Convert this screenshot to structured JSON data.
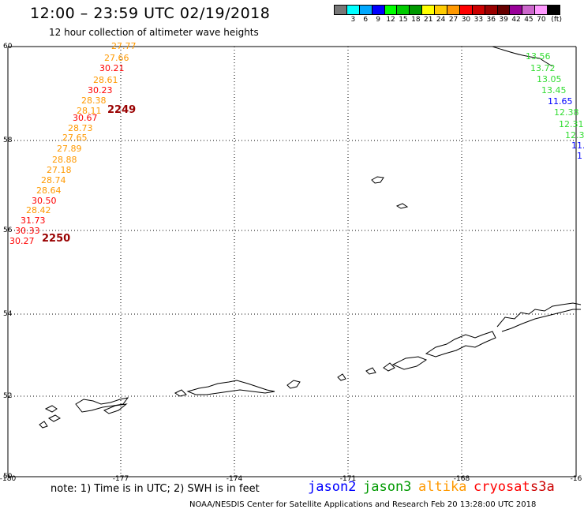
{
  "header": {
    "title": "12:00 – 23:59 UTC 02/19/2018",
    "subtitle": "12 hour collection of altimeter wave heights"
  },
  "legend": {
    "unit": "(ft)",
    "swatches": [
      {
        "color": "#777777",
        "label": ""
      },
      {
        "color": "#00ffff",
        "label": "3"
      },
      {
        "color": "#00a8ff",
        "label": "6"
      },
      {
        "color": "#0000ff",
        "label": "9"
      },
      {
        "color": "#00ff00",
        "label": "12"
      },
      {
        "color": "#00cc00",
        "label": "15"
      },
      {
        "color": "#009900",
        "label": "18"
      },
      {
        "color": "#ffff00",
        "label": "21"
      },
      {
        "color": "#ffcc00",
        "label": "24"
      },
      {
        "color": "#ff9900",
        "label": "27"
      },
      {
        "color": "#ff0000",
        "label": "30"
      },
      {
        "color": "#cc0000",
        "label": "33"
      },
      {
        "color": "#990000",
        "label": "36"
      },
      {
        "color": "#660000",
        "label": "39"
      },
      {
        "color": "#990099",
        "label": "42"
      },
      {
        "color": "#cc66cc",
        "label": "45"
      },
      {
        "color": "#ff99ff",
        "label": "70"
      },
      {
        "color": "#000000",
        "label": ""
      }
    ]
  },
  "axes": {
    "lat_labels": [
      "60",
      "58",
      "56",
      "54",
      "52",
      "50"
    ],
    "lon_labels": [
      "-180",
      "-177",
      "-174",
      "-171",
      "-168",
      "-16"
    ]
  },
  "tracks": {
    "west": [
      {
        "v": "27.77",
        "c": "#ff9900"
      },
      {
        "v": "27.66",
        "c": "#ff9900"
      },
      {
        "v": "30.21",
        "c": "#ff0000"
      },
      {
        "v": "28.61",
        "c": "#ff9900"
      },
      {
        "v": "30.23",
        "c": "#ff0000"
      },
      {
        "v": "28.38",
        "c": "#ff9900"
      },
      {
        "v": "28.11",
        "c": "#ff9900"
      },
      {
        "v": "30.67",
        "c": "#ff0000"
      },
      {
        "v": "28.73",
        "c": "#ff9900"
      },
      {
        "v": "27.65",
        "c": "#ff9900"
      },
      {
        "v": "27.89",
        "c": "#ff9900"
      },
      {
        "v": "28.88",
        "c": "#ff9900"
      },
      {
        "v": "27.18",
        "c": "#ff9900"
      },
      {
        "v": "28.74",
        "c": "#ff9900"
      },
      {
        "v": "28.64",
        "c": "#ff9900"
      },
      {
        "v": "30.50",
        "c": "#ff0000"
      },
      {
        "v": "28.42",
        "c": "#ff9900"
      },
      {
        "v": "31.73",
        "c": "#ff0000"
      },
      {
        "v": "30.33",
        "c": "#ff0000"
      },
      {
        "v": "30.27",
        "c": "#ff0000"
      }
    ],
    "east": [
      {
        "v": "13.56",
        "c": "#33dd33"
      },
      {
        "v": "13.72",
        "c": "#33dd33"
      },
      {
        "v": "13.05",
        "c": "#33dd33"
      },
      {
        "v": "13.45",
        "c": "#33dd33"
      },
      {
        "v": "11.65",
        "c": "#0000ff"
      },
      {
        "v": "12.38",
        "c": "#33dd33"
      },
      {
        "v": "12.31",
        "c": "#33dd33"
      },
      {
        "v": "12.3",
        "c": "#33dd33"
      },
      {
        "v": "11.",
        "c": "#0000ff"
      },
      {
        "v": "1",
        "c": "#0000ff"
      }
    ],
    "time_labels": [
      {
        "v": "2249",
        "c": "#990000"
      },
      {
        "v": "2250",
        "c": "#990000"
      }
    ]
  },
  "note": "note: 1) Time is in UTC; 2) SWH is in feet",
  "satellites": [
    {
      "name": "jason2",
      "color": "#0000ff"
    },
    {
      "name": "jason3",
      "color": "#009900"
    },
    {
      "name": "altika",
      "color": "#ff9900"
    },
    {
      "name": "cryosat",
      "color": "#ff0000"
    },
    {
      "name": "s3a",
      "color": "#cc0000"
    }
  ],
  "footer": "NOAA/NESDIS Center for Satellite Applications and Research    Feb 20 13:28:00 UTC 2018"
}
